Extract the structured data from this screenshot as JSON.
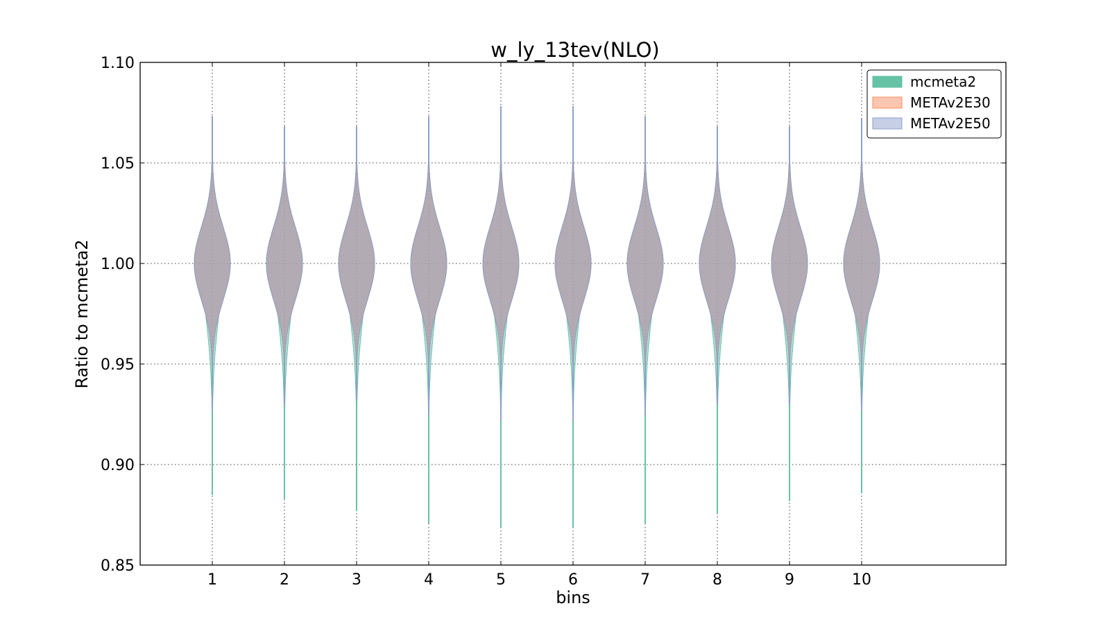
{
  "chart_data": {
    "type": "violin",
    "title": "w_ly_13tev(NLO)",
    "xlabel": "bins",
    "ylabel": "Ratio to mcmeta2",
    "xlim": [
      0,
      12
    ],
    "ylim": [
      0.85,
      1.1
    ],
    "xticks": [
      1,
      2,
      3,
      4,
      5,
      6,
      7,
      8,
      9,
      10
    ],
    "xtick_labels": [
      "1",
      "2",
      "3",
      "4",
      "5",
      "6",
      "7",
      "8",
      "9",
      "10"
    ],
    "yticks": [
      0.85,
      0.9,
      0.95,
      1.0,
      1.05,
      1.1
    ],
    "ytick_labels": [
      "0.85",
      "0.90",
      "0.95",
      "1.00",
      "1.05",
      "1.10"
    ],
    "grid": true,
    "legend_position": "top-right",
    "categories": [
      1,
      2,
      3,
      4,
      5,
      6,
      7,
      8,
      9,
      10
    ],
    "series": [
      {
        "name": "mcmeta2",
        "color": "#66c2a5",
        "stats": [
          {
            "bin": 1,
            "min": 0.885,
            "max": 1.073,
            "center": 1.0
          },
          {
            "bin": 2,
            "min": 0.883,
            "max": 1.068,
            "center": 1.0
          },
          {
            "bin": 3,
            "min": 0.877,
            "max": 1.068,
            "center": 1.0
          },
          {
            "bin": 4,
            "min": 0.871,
            "max": 1.073,
            "center": 1.0
          },
          {
            "bin": 5,
            "min": 0.869,
            "max": 1.078,
            "center": 1.0
          },
          {
            "bin": 6,
            "min": 0.869,
            "max": 1.078,
            "center": 1.0
          },
          {
            "bin": 7,
            "min": 0.871,
            "max": 1.073,
            "center": 1.0
          },
          {
            "bin": 8,
            "min": 0.876,
            "max": 1.068,
            "center": 1.0
          },
          {
            "bin": 9,
            "min": 0.882,
            "max": 1.068,
            "center": 1.0
          },
          {
            "bin": 10,
            "min": 0.886,
            "max": 1.072,
            "center": 1.0
          }
        ]
      },
      {
        "name": "METAv2E30",
        "color": "#fc8d62",
        "stats": [
          {
            "bin": 1,
            "min": 0.927,
            "max": 1.073,
            "center": 1.0
          },
          {
            "bin": 2,
            "min": 0.93,
            "max": 1.068,
            "center": 1.0
          },
          {
            "bin": 3,
            "min": 0.932,
            "max": 1.068,
            "center": 1.0
          },
          {
            "bin": 4,
            "min": 0.925,
            "max": 1.073,
            "center": 1.0
          },
          {
            "bin": 5,
            "min": 0.922,
            "max": 1.078,
            "center": 1.0
          },
          {
            "bin": 6,
            "min": 0.922,
            "max": 1.078,
            "center": 1.0
          },
          {
            "bin": 7,
            "min": 0.925,
            "max": 1.073,
            "center": 1.0
          },
          {
            "bin": 8,
            "min": 0.93,
            "max": 1.068,
            "center": 1.0
          },
          {
            "bin": 9,
            "min": 0.93,
            "max": 1.068,
            "center": 1.0
          },
          {
            "bin": 10,
            "min": 0.927,
            "max": 1.072,
            "center": 1.0
          }
        ]
      },
      {
        "name": "METAv2E50",
        "color": "#8da0cb",
        "stats": [
          {
            "bin": 1,
            "min": 0.927,
            "max": 1.073,
            "center": 1.0
          },
          {
            "bin": 2,
            "min": 0.93,
            "max": 1.068,
            "center": 1.0
          },
          {
            "bin": 3,
            "min": 0.932,
            "max": 1.068,
            "center": 1.0
          },
          {
            "bin": 4,
            "min": 0.925,
            "max": 1.073,
            "center": 1.0
          },
          {
            "bin": 5,
            "min": 0.922,
            "max": 1.078,
            "center": 1.0
          },
          {
            "bin": 6,
            "min": 0.922,
            "max": 1.078,
            "center": 1.0
          },
          {
            "bin": 7,
            "min": 0.925,
            "max": 1.073,
            "center": 1.0
          },
          {
            "bin": 8,
            "min": 0.93,
            "max": 1.068,
            "center": 1.0
          },
          {
            "bin": 9,
            "min": 0.93,
            "max": 1.068,
            "center": 1.0
          },
          {
            "bin": 10,
            "min": 0.927,
            "max": 1.072,
            "center": 1.0
          }
        ]
      }
    ]
  }
}
